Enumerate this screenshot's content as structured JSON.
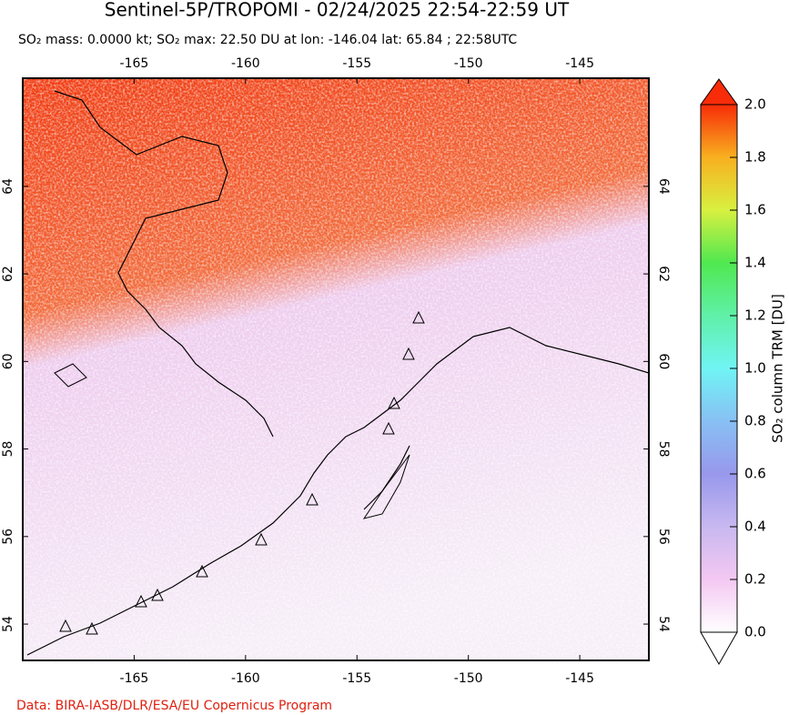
{
  "title": "Sentinel-5P/TROPOMI - 02/24/2025 22:54-22:59 UT",
  "subtitle": "SO₂ mass: 0.0000 kt; SO₂ max: 22.50 DU at lon: -146.04 lat: 65.84 ; 22:58UTC",
  "map": {
    "xlim": [
      -170,
      -141.9
    ],
    "ylim": [
      53.17,
      66.47
    ],
    "xticks": [
      -165,
      -160,
      -155,
      -150,
      -145
    ],
    "yticks": [
      54,
      56,
      58,
      60,
      62,
      64
    ]
  },
  "colorbar": {
    "label": "SO₂ column TRM [DU]",
    "lim": [
      0,
      2
    ],
    "ticks": [
      {
        "value": 0,
        "label": "0.0"
      },
      0.2,
      0.4,
      0.6,
      0.8,
      {
        "value": 1,
        "label": "1.0"
      },
      1.2,
      1.4,
      1.6,
      1.8,
      {
        "value": 2,
        "label": "2.0"
      }
    ],
    "colors": [
      "#ffffff",
      "#f4c8f2",
      "#c8b8f0",
      "#9898ec",
      "#88c0f4",
      "#70f4f4",
      "#60f0a8",
      "#50e850",
      "#d8f040",
      "#f8b020",
      "#f82c08"
    ]
  },
  "credit": "Data: BIRA-IASB/DLR/ESA/EU Copernicus Program"
}
